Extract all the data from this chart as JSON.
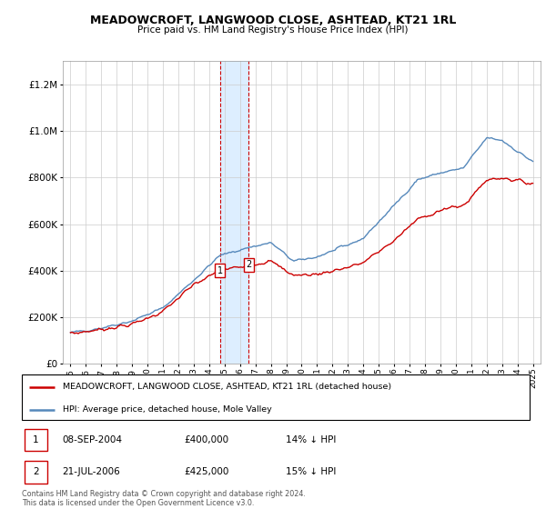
{
  "title": "MEADOWCROFT, LANGWOOD CLOSE, ASHTEAD, KT21 1RL",
  "subtitle": "Price paid vs. HM Land Registry's House Price Index (HPI)",
  "legend_line1": "MEADOWCROFT, LANGWOOD CLOSE, ASHTEAD, KT21 1RL (detached house)",
  "legend_line2": "HPI: Average price, detached house, Mole Valley",
  "transaction1_date": "08-SEP-2004",
  "transaction1_price": "£400,000",
  "transaction1_hpi": "14% ↓ HPI",
  "transaction2_date": "21-JUL-2006",
  "transaction2_price": "£425,000",
  "transaction2_hpi": "15% ↓ HPI",
  "footnote": "Contains HM Land Registry data © Crown copyright and database right 2024.\nThis data is licensed under the Open Government Licence v3.0.",
  "red_color": "#cc0000",
  "blue_color": "#5588bb",
  "shading_color": "#ddeeff",
  "grid_color": "#cccccc",
  "background_color": "#ffffff",
  "marker1_x": 2004.69,
  "marker2_x": 2006.55,
  "marker1_y": 400000,
  "marker2_y": 425000,
  "ylim_min": 0,
  "ylim_max": 1300000,
  "xlim_min": 1994.5,
  "xlim_max": 2025.5,
  "yticks": [
    0,
    200000,
    400000,
    600000,
    800000,
    1000000,
    1200000
  ],
  "xticks": [
    1995,
    1996,
    1997,
    1998,
    1999,
    2000,
    2001,
    2002,
    2003,
    2004,
    2005,
    2006,
    2007,
    2008,
    2009,
    2010,
    2011,
    2012,
    2013,
    2014,
    2015,
    2016,
    2017,
    2018,
    2019,
    2020,
    2021,
    2022,
    2023,
    2024,
    2025
  ]
}
